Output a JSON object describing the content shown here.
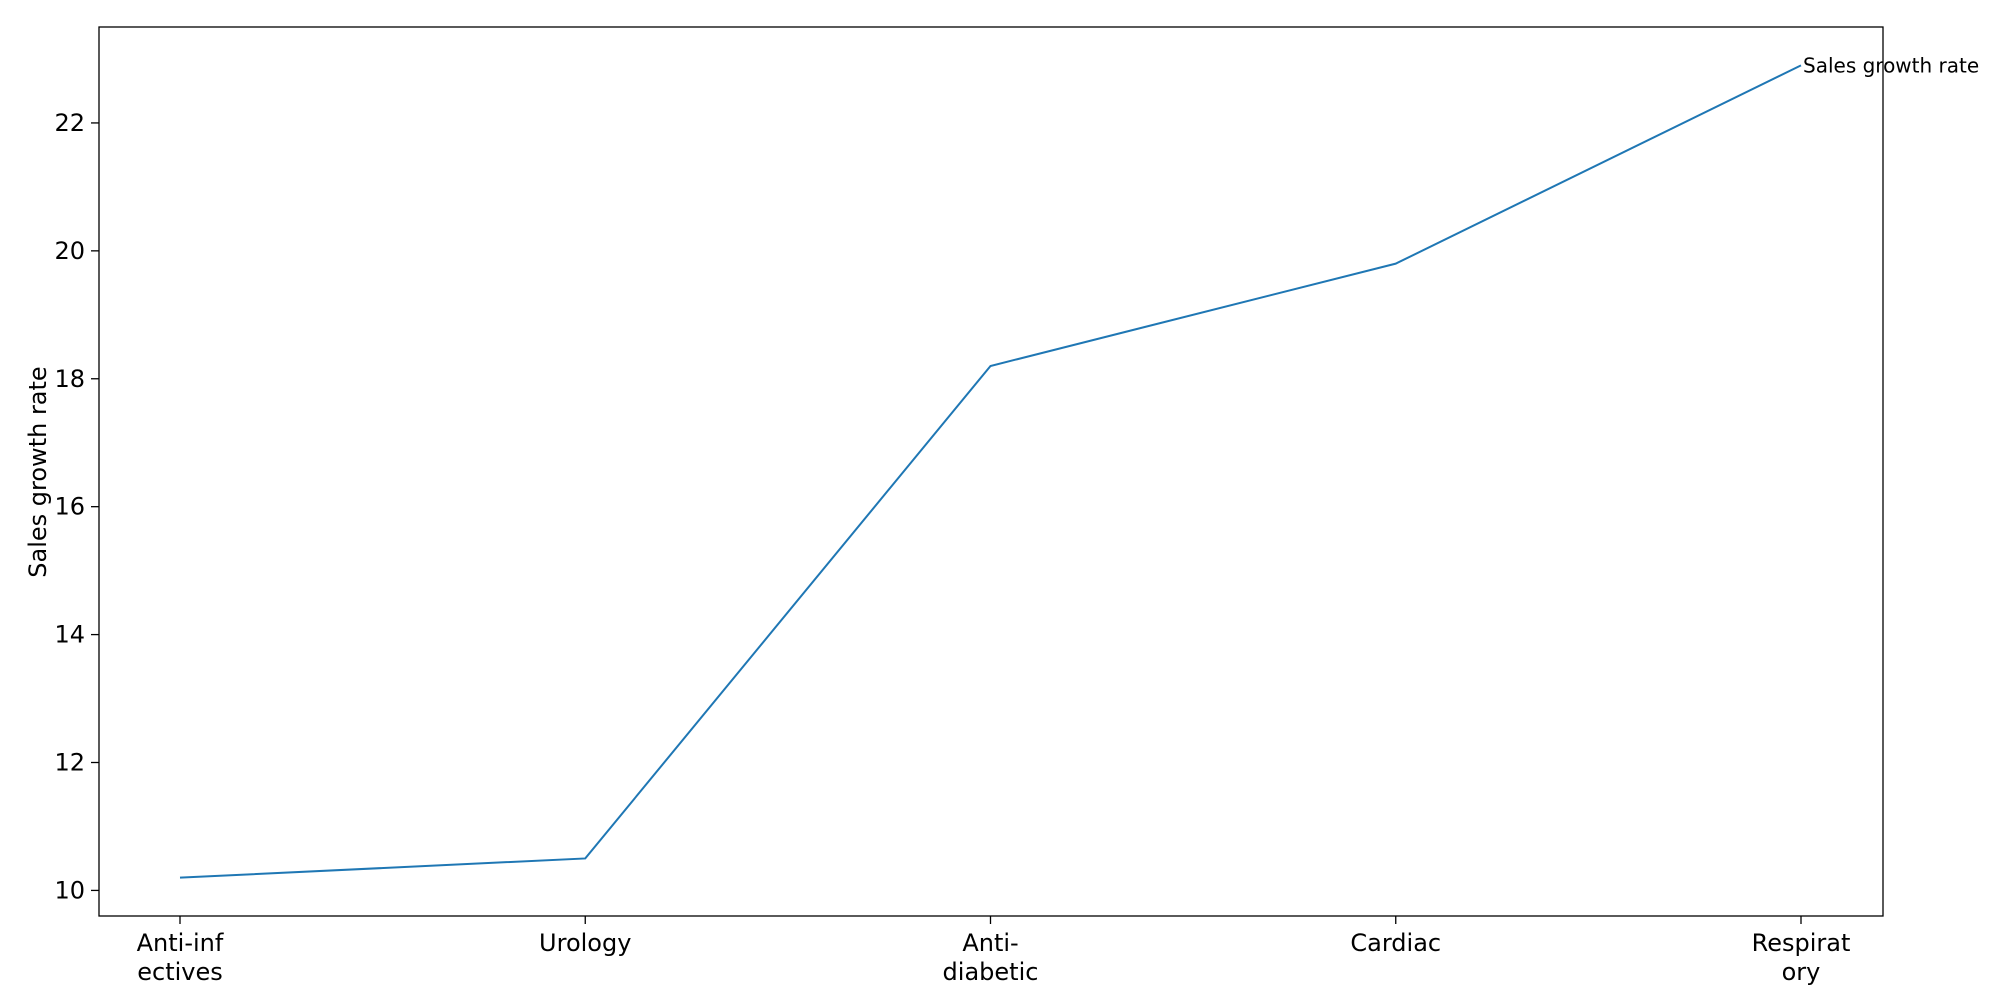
{
  "chart_data": {
    "type": "line",
    "title": "",
    "xlabel": "",
    "ylabel": "Sales growth rate",
    "categories": [
      [
        "Anti-inf",
        "ectives"
      ],
      [
        "Urology"
      ],
      [
        "Anti-",
        "diabetic"
      ],
      [
        "Cardiac"
      ],
      [
        "Respirat",
        "ory"
      ]
    ],
    "series": [
      {
        "name": "Sales growth rate",
        "values": [
          10.2,
          10.5,
          18.2,
          19.8,
          22.9
        ],
        "color": "#1f77b4"
      }
    ],
    "ylim": [
      9.6,
      23.5
    ],
    "yticks": [
      10,
      12,
      14,
      16,
      18,
      20,
      22
    ],
    "grid": false,
    "legend": "none",
    "end_label": "right-of-last-point"
  }
}
